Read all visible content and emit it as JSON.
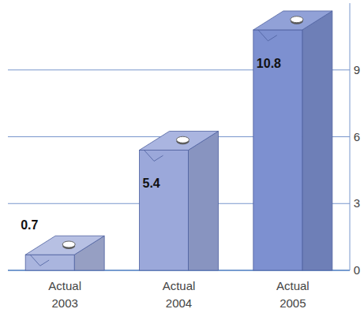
{
  "chart_data": {
    "type": "bar",
    "categories": [
      "Actual 2003",
      "Actual 2004",
      "Actual 2005"
    ],
    "values": [
      0.7,
      5.4,
      10.8
    ],
    "colors": [
      "#aab5de",
      "#9ba8da",
      "#7d90d0"
    ],
    "ylim": [
      0,
      12
    ],
    "yticks": [
      0,
      3,
      6,
      9
    ],
    "grid": true,
    "data_labels": true
  }
}
